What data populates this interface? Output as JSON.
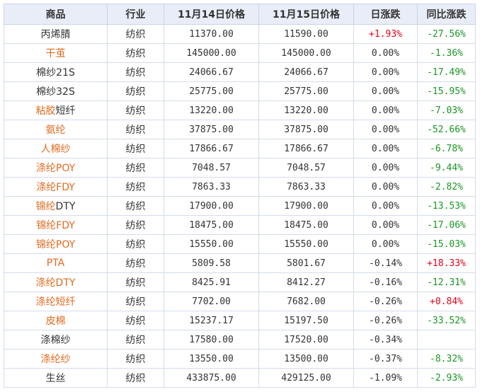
{
  "colors": {
    "link": "#e06a1e",
    "up": "#e0001b",
    "down": "#1a9624",
    "header_bg": "#e8edf7",
    "border": "#d3dbec"
  },
  "headers": [
    "商品",
    "行业",
    "11月14日价格",
    "11月15日价格",
    "日涨跌",
    "同比涨跌"
  ],
  "rows": [
    {
      "name_a": "丙烯腈",
      "name_a_link": false,
      "name_b": "",
      "industry": "纺织",
      "price1": "11370.00",
      "price2": "11590.00",
      "daily": "+1.93%",
      "daily_dir": "up",
      "yoy": "-27.56%",
      "yoy_dir": "down"
    },
    {
      "name_a": "干茧",
      "name_a_link": true,
      "name_b": "",
      "industry": "纺织",
      "price1": "145000.00",
      "price2": "145000.00",
      "daily": "0.00%",
      "daily_dir": "flat",
      "yoy": "-1.36%",
      "yoy_dir": "down"
    },
    {
      "name_a": "棉纱21S",
      "name_a_link": false,
      "name_b": "",
      "industry": "纺织",
      "price1": "24066.67",
      "price2": "24066.67",
      "daily": "0.00%",
      "daily_dir": "flat",
      "yoy": "-17.49%",
      "yoy_dir": "down"
    },
    {
      "name_a": "棉纱32S",
      "name_a_link": false,
      "name_b": "",
      "industry": "纺织",
      "price1": "25775.00",
      "price2": "25775.00",
      "daily": "0.00%",
      "daily_dir": "flat",
      "yoy": "-15.95%",
      "yoy_dir": "down"
    },
    {
      "name_a": "粘胶",
      "name_a_link": true,
      "name_b": "短纤",
      "industry": "纺织",
      "price1": "13220.00",
      "price2": "13220.00",
      "daily": "0.00%",
      "daily_dir": "flat",
      "yoy": "-7.03%",
      "yoy_dir": "down"
    },
    {
      "name_a": "氨纶",
      "name_a_link": true,
      "name_b": "",
      "industry": "纺织",
      "price1": "37875.00",
      "price2": "37875.00",
      "daily": "0.00%",
      "daily_dir": "flat",
      "yoy": "-52.66%",
      "yoy_dir": "down"
    },
    {
      "name_a": "人棉纱",
      "name_a_link": true,
      "name_b": "",
      "industry": "纺织",
      "price1": "17866.67",
      "price2": "17866.67",
      "daily": "0.00%",
      "daily_dir": "flat",
      "yoy": "-6.78%",
      "yoy_dir": "down"
    },
    {
      "name_a": "涤纶POY",
      "name_a_link": true,
      "name_b": "",
      "industry": "纺织",
      "price1": "7048.57",
      "price2": "7048.57",
      "daily": "0.00%",
      "daily_dir": "flat",
      "yoy": "-9.44%",
      "yoy_dir": "down"
    },
    {
      "name_a": "涤纶FDY",
      "name_a_link": true,
      "name_b": "",
      "industry": "纺织",
      "price1": "7863.33",
      "price2": "7863.33",
      "daily": "0.00%",
      "daily_dir": "flat",
      "yoy": "-2.82%",
      "yoy_dir": "down"
    },
    {
      "name_a": "锦纶",
      "name_a_link": true,
      "name_b": "DTY",
      "industry": "纺织",
      "price1": "17900.00",
      "price2": "17900.00",
      "daily": "0.00%",
      "daily_dir": "flat",
      "yoy": "-13.53%",
      "yoy_dir": "down"
    },
    {
      "name_a": "锦纶FDY",
      "name_a_link": true,
      "name_b": "",
      "industry": "纺织",
      "price1": "18475.00",
      "price2": "18475.00",
      "daily": "0.00%",
      "daily_dir": "flat",
      "yoy": "-17.06%",
      "yoy_dir": "down"
    },
    {
      "name_a": "锦纶POY",
      "name_a_link": true,
      "name_b": "",
      "industry": "纺织",
      "price1": "15550.00",
      "price2": "15550.00",
      "daily": "0.00%",
      "daily_dir": "flat",
      "yoy": "-15.03%",
      "yoy_dir": "down"
    },
    {
      "name_a": "PTA",
      "name_a_link": true,
      "name_b": "",
      "industry": "纺织",
      "price1": "5809.58",
      "price2": "5801.67",
      "daily": "-0.14%",
      "daily_dir": "down",
      "yoy": "+18.33%",
      "yoy_dir": "up"
    },
    {
      "name_a": "涤纶DTY",
      "name_a_link": true,
      "name_b": "",
      "industry": "纺织",
      "price1": "8425.91",
      "price2": "8412.27",
      "daily": "-0.16%",
      "daily_dir": "down",
      "yoy": "-12.31%",
      "yoy_dir": "down"
    },
    {
      "name_a": "涤纶短纤",
      "name_a_link": true,
      "name_b": "",
      "industry": "纺织",
      "price1": "7702.00",
      "price2": "7682.00",
      "daily": "-0.26%",
      "daily_dir": "down",
      "yoy": "+0.84%",
      "yoy_dir": "up"
    },
    {
      "name_a": "皮棉",
      "name_a_link": true,
      "name_b": "",
      "industry": "纺织",
      "price1": "15237.17",
      "price2": "15197.50",
      "daily": "-0.26%",
      "daily_dir": "down",
      "yoy": "-33.52%",
      "yoy_dir": "down"
    },
    {
      "name_a": "涤棉纱",
      "name_a_link": false,
      "name_b": "",
      "industry": "纺织",
      "price1": "17580.00",
      "price2": "17520.00",
      "daily": "-0.34%",
      "daily_dir": "down",
      "yoy": "",
      "yoy_dir": "flat"
    },
    {
      "name_a": "涤纶纱",
      "name_a_link": true,
      "name_b": "",
      "industry": "纺织",
      "price1": "13550.00",
      "price2": "13500.00",
      "daily": "-0.37%",
      "daily_dir": "down",
      "yoy": "-8.32%",
      "yoy_dir": "down"
    },
    {
      "name_a": "生丝",
      "name_a_link": false,
      "name_b": "",
      "industry": "纺织",
      "price1": "433875.00",
      "price2": "429125.00",
      "daily": "-1.09%",
      "daily_dir": "down",
      "yoy": "-2.93%",
      "yoy_dir": "down"
    }
  ]
}
